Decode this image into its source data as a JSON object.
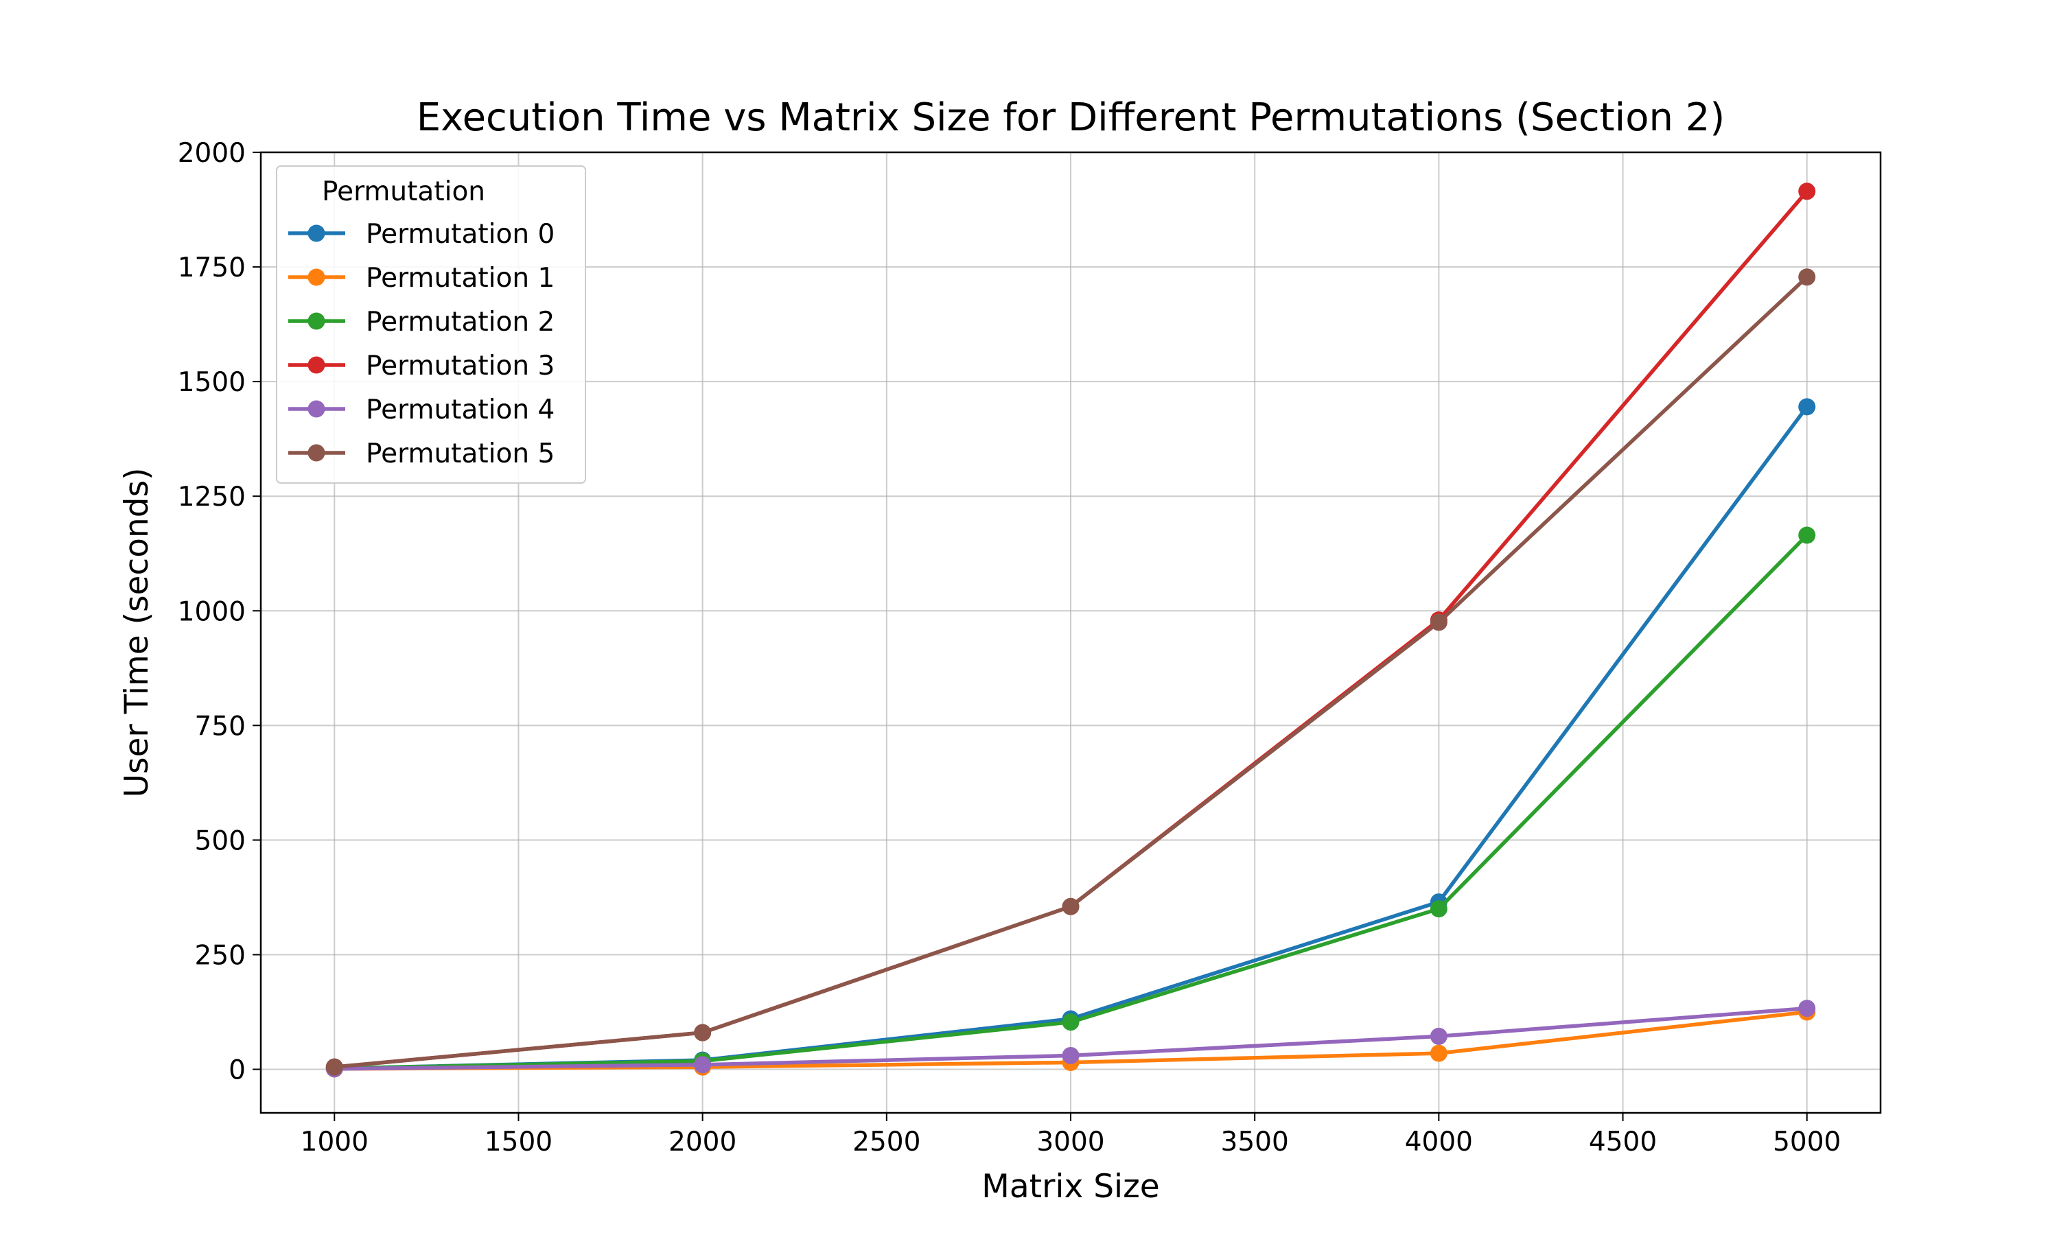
{
  "chart_data": {
    "type": "line",
    "title": "Execution Time vs Matrix Size for Different Permutations (Section 2)",
    "xlabel": "Matrix Size",
    "ylabel": "User Time (seconds)",
    "x": [
      1000,
      2000,
      3000,
      4000,
      5000
    ],
    "xlim": [
      800,
      5200
    ],
    "ylim": [
      -95,
      2000
    ],
    "xticks": [
      1000,
      1500,
      2000,
      2500,
      3000,
      3500,
      4000,
      4500,
      5000
    ],
    "yticks": [
      0,
      250,
      500,
      750,
      1000,
      1250,
      1500,
      1750,
      2000
    ],
    "grid": true,
    "legend": {
      "title": "Permutation",
      "placement": "upper-left"
    },
    "series": [
      {
        "name": "Permutation 0",
        "color": "#1f77b4",
        "values": [
          2,
          20,
          110,
          365,
          1445
        ]
      },
      {
        "name": "Permutation 1",
        "color": "#ff7f0e",
        "values": [
          1,
          5,
          15,
          35,
          125
        ]
      },
      {
        "name": "Permutation 2",
        "color": "#2ca02c",
        "values": [
          2,
          18,
          103,
          350,
          1165
        ]
      },
      {
        "name": "Permutation 3",
        "color": "#d62728",
        "values": [
          5,
          80,
          355,
          980,
          1915
        ]
      },
      {
        "name": "Permutation 4",
        "color": "#9467bd",
        "values": [
          1,
          10,
          30,
          72,
          133
        ]
      },
      {
        "name": "Permutation 5",
        "color": "#8c564b",
        "values": [
          5,
          80,
          355,
          975,
          1728
        ]
      }
    ]
  }
}
